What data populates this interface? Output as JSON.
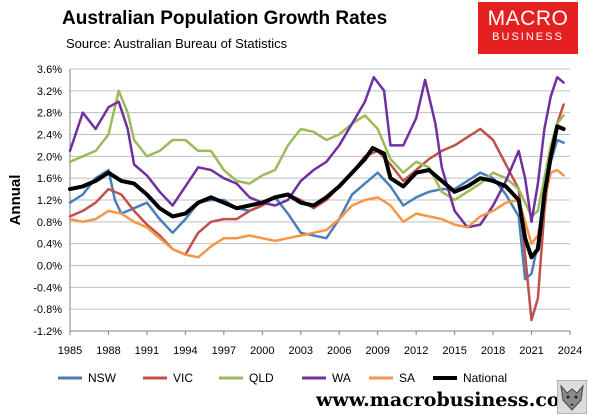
{
  "header": {
    "title": "Australian Population Growth Rates",
    "subtitle": "Source: Australian Bureau of Statistics"
  },
  "logo": {
    "line1": "MACRO",
    "line2": "BUSINESS"
  },
  "footer": {
    "website": "www.macrobusiness.com."
  },
  "chart_data": {
    "type": "line",
    "ylabel": "Annual",
    "xlabel": "",
    "xlim": [
      1985,
      2024
    ],
    "ylim": [
      -1.2,
      3.6
    ],
    "yticks": [
      -1.2,
      -0.8,
      -0.4,
      0.0,
      0.4,
      0.8,
      1.2,
      1.6,
      2.0,
      2.4,
      2.8,
      3.2,
      3.6
    ],
    "ytick_labels": [
      "-1.2%",
      "-0.8%",
      "-0.4%",
      "0.0%",
      "0.4%",
      "0.8%",
      "1.2%",
      "1.6%",
      "2.0%",
      "2.4%",
      "2.8%",
      "3.2%",
      "3.6%"
    ],
    "xticks": [
      1985,
      1988,
      1991,
      1994,
      1997,
      2000,
      2003,
      2006,
      2009,
      2012,
      2015,
      2018,
      2021,
      2024
    ],
    "grid": true,
    "legend_position": "bottom",
    "series": [
      {
        "name": "NSW",
        "color": "#4a7ebb",
        "x": [
          1985,
          1986,
          1987,
          1988,
          1988.5,
          1989,
          1990,
          1991,
          1992,
          1993,
          1994,
          1995,
          1996,
          1997,
          1998,
          1999,
          2000,
          2001,
          2002,
          2003,
          2004,
          2005,
          2006,
          2007,
          2008,
          2009,
          2010,
          2011,
          2012,
          2013,
          2014,
          2015,
          2016,
          2017,
          2018,
          2019,
          2020,
          2020.5,
          2021,
          2021.5,
          2022,
          2022.5,
          2023,
          2023.5
        ],
        "y": [
          1.15,
          1.3,
          1.6,
          1.75,
          1.2,
          0.95,
          1.05,
          1.15,
          0.85,
          0.6,
          0.85,
          1.15,
          1.2,
          1.2,
          1.05,
          1.0,
          1.1,
          1.25,
          0.95,
          0.6,
          0.55,
          0.5,
          0.85,
          1.3,
          1.5,
          1.7,
          1.45,
          1.1,
          1.25,
          1.35,
          1.4,
          1.4,
          1.55,
          1.7,
          1.6,
          1.3,
          0.9,
          -0.25,
          -0.15,
          0.4,
          1.2,
          1.9,
          2.3,
          2.25
        ]
      },
      {
        "name": "VIC",
        "color": "#c0504d",
        "x": [
          1985,
          1986,
          1987,
          1988,
          1989,
          1990,
          1991,
          1992,
          1993,
          1994,
          1995,
          1996,
          1997,
          1998,
          1999,
          2000,
          2001,
          2002,
          2003,
          2004,
          2005,
          2006,
          2007,
          2008,
          2009,
          2010,
          2011,
          2012,
          2013,
          2014,
          2015,
          2016,
          2017,
          2018,
          2019,
          2020,
          2020.5,
          2021,
          2021.5,
          2022,
          2022.5,
          2023,
          2023.5
        ],
        "y": [
          0.9,
          1.0,
          1.15,
          1.4,
          1.3,
          1.0,
          0.75,
          0.55,
          0.3,
          0.2,
          0.6,
          0.8,
          0.85,
          0.85,
          1.0,
          1.1,
          1.25,
          1.3,
          1.2,
          1.05,
          1.2,
          1.45,
          1.7,
          2.0,
          2.1,
          1.85,
          1.55,
          1.75,
          1.95,
          2.1,
          2.2,
          2.35,
          2.5,
          2.3,
          1.85,
          1.4,
          0.2,
          -1.0,
          -0.6,
          1.0,
          2.0,
          2.6,
          2.95
        ]
      },
      {
        "name": "QLD",
        "color": "#9bbb59",
        "x": [
          1985,
          1986,
          1987,
          1988,
          1988.8,
          1989.5,
          1990,
          1991,
          1992,
          1993,
          1994,
          1995,
          1996,
          1997,
          1998,
          1999,
          2000,
          2001,
          2002,
          2003,
          2004,
          2005,
          2006,
          2007,
          2008,
          2009,
          2010,
          2011,
          2012,
          2013,
          2014,
          2015,
          2016,
          2017,
          2018,
          2019,
          2020,
          2021,
          2021.5,
          2022,
          2022.5,
          2023,
          2023.5
        ],
        "y": [
          1.9,
          2.0,
          2.1,
          2.4,
          3.2,
          2.8,
          2.3,
          2.0,
          2.1,
          2.3,
          2.3,
          2.1,
          2.1,
          1.75,
          1.55,
          1.5,
          1.65,
          1.75,
          2.2,
          2.5,
          2.45,
          2.3,
          2.4,
          2.6,
          2.75,
          2.5,
          1.95,
          1.7,
          1.9,
          1.8,
          1.35,
          1.2,
          1.35,
          1.5,
          1.7,
          1.6,
          1.4,
          0.9,
          1.0,
          1.6,
          2.2,
          2.6,
          2.75
        ]
      },
      {
        "name": "WA",
        "color": "#7030a0",
        "x": [
          1985,
          1986,
          1987,
          1988,
          1988.8,
          1989.5,
          1990,
          1991,
          1992,
          1993,
          1994,
          1995,
          1996,
          1997,
          1998,
          1999,
          2000,
          2001,
          2002,
          2003,
          2004,
          2005,
          2006,
          2007,
          2008,
          2008.7,
          2009.5,
          2010,
          2011,
          2012,
          2012.7,
          2013.5,
          2014,
          2015,
          2016,
          2017,
          2018,
          2019,
          2020,
          2020.5,
          2021,
          2021.5,
          2022,
          2022.5,
          2023,
          2023.5
        ],
        "y": [
          2.1,
          2.8,
          2.5,
          2.9,
          3.0,
          2.5,
          1.85,
          1.65,
          1.35,
          1.1,
          1.45,
          1.8,
          1.75,
          1.6,
          1.5,
          1.25,
          1.15,
          1.1,
          1.2,
          1.55,
          1.75,
          1.9,
          2.2,
          2.6,
          3.0,
          3.45,
          3.2,
          2.2,
          2.2,
          2.7,
          3.4,
          2.6,
          1.8,
          1.0,
          0.7,
          0.75,
          1.1,
          1.55,
          2.1,
          1.6,
          0.8,
          1.5,
          2.5,
          3.1,
          3.45,
          3.35
        ]
      },
      {
        "name": "SA",
        "color": "#f79646",
        "x": [
          1985,
          1986,
          1987,
          1988,
          1989,
          1990,
          1991,
          1992,
          1993,
          1994,
          1995,
          1996,
          1997,
          1998,
          1999,
          2000,
          2001,
          2002,
          2003,
          2004,
          2005,
          2006,
          2007,
          2008,
          2009,
          2010,
          2011,
          2012,
          2013,
          2014,
          2015,
          2016,
          2017,
          2018,
          2019,
          2020,
          2021,
          2021.5,
          2022,
          2022.5,
          2023,
          2023.5
        ],
        "y": [
          0.85,
          0.8,
          0.85,
          1.0,
          0.95,
          0.8,
          0.7,
          0.5,
          0.3,
          0.2,
          0.15,
          0.35,
          0.5,
          0.5,
          0.55,
          0.5,
          0.45,
          0.5,
          0.55,
          0.6,
          0.65,
          0.85,
          1.1,
          1.2,
          1.25,
          1.1,
          0.8,
          0.95,
          0.9,
          0.85,
          0.75,
          0.7,
          0.9,
          1.0,
          1.15,
          1.2,
          0.4,
          0.55,
          1.2,
          1.7,
          1.75,
          1.65
        ]
      },
      {
        "name": "National",
        "color": "#000000",
        "x": [
          1985,
          1986,
          1987,
          1988,
          1989,
          1990,
          1991,
          1992,
          1993,
          1994,
          1995,
          1996,
          1997,
          1998,
          1999,
          2000,
          2001,
          2002,
          2003,
          2004,
          2005,
          2006,
          2007,
          2008,
          2008.6,
          2009.5,
          2010,
          2011,
          2012,
          2013,
          2014,
          2015,
          2016,
          2017,
          2018,
          2019,
          2020,
          2020.5,
          2021,
          2021.5,
          2022,
          2022.5,
          2023,
          2023.5
        ],
        "y": [
          1.4,
          1.45,
          1.55,
          1.7,
          1.55,
          1.5,
          1.3,
          1.05,
          0.9,
          0.95,
          1.15,
          1.25,
          1.15,
          1.05,
          1.1,
          1.15,
          1.25,
          1.3,
          1.15,
          1.1,
          1.25,
          1.45,
          1.7,
          1.95,
          2.15,
          2.05,
          1.6,
          1.45,
          1.7,
          1.75,
          1.55,
          1.35,
          1.45,
          1.6,
          1.55,
          1.45,
          1.2,
          0.5,
          0.15,
          0.3,
          1.3,
          2.0,
          2.55,
          2.5
        ]
      }
    ]
  }
}
